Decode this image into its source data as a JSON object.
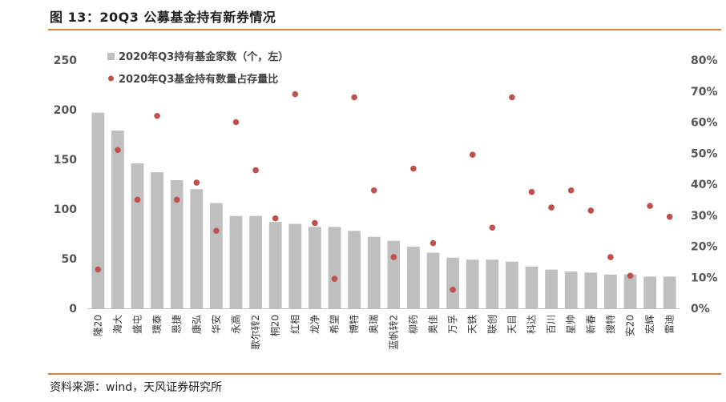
{
  "header": {
    "title": "图 13：20Q3 公募基金持有新券情况"
  },
  "footer": {
    "source": "资料来源：wind，天风证券研究所"
  },
  "colors": {
    "bar": "#bfbfbf",
    "dot": "#c0504d",
    "rule": "#d9803a"
  },
  "chart_data": {
    "type": "bar",
    "categories": [
      "隆20",
      "海大",
      "盛屯",
      "璞泰",
      "恩捷",
      "康弘",
      "华安",
      "永高",
      "歌尔转2",
      "桐20",
      "红相",
      "龙净",
      "希望",
      "博特",
      "奥瑞",
      "蓝帆转2",
      "柳药",
      "奥佳",
      "万孚",
      "天铁",
      "联创",
      "天目",
      "科达",
      "百川",
      "星帅",
      "新春",
      "搜特",
      "安20",
      "宏辉",
      "雷迪"
    ],
    "series": [
      {
        "name": "2020年Q3持有基金家数（个，左）",
        "type": "bar",
        "axis": "left",
        "values": [
          197,
          179,
          146,
          137,
          129,
          120,
          106,
          93,
          93,
          87,
          85,
          82,
          82,
          78,
          72,
          68,
          62,
          56,
          51,
          49,
          49,
          47,
          42,
          39,
          37,
          36,
          34,
          34,
          32,
          32
        ]
      },
      {
        "name": "2020年Q3基金持有数量占存量比",
        "type": "scatter",
        "axis": "right",
        "unit": "%",
        "values": [
          12.5,
          51,
          35,
          62,
          35,
          40.5,
          25,
          60,
          44.5,
          29,
          69,
          27.5,
          9.5,
          68,
          38,
          16.5,
          45,
          21,
          6,
          49.5,
          26,
          68,
          37.5,
          32.5,
          38,
          31.5,
          16.5,
          10.5,
          33,
          29.5
        ]
      }
    ],
    "left_axis": {
      "min": 0,
      "max": 250,
      "ticks": [
        "0",
        "50",
        "100",
        "150",
        "200",
        "250"
      ]
    },
    "right_axis": {
      "min": 0,
      "max": 80,
      "ticks": [
        "0%",
        "10%",
        "20%",
        "30%",
        "40%",
        "50%",
        "60%",
        "70%",
        "80%"
      ]
    },
    "legend": {
      "placement": "top-left"
    },
    "grid": false
  }
}
